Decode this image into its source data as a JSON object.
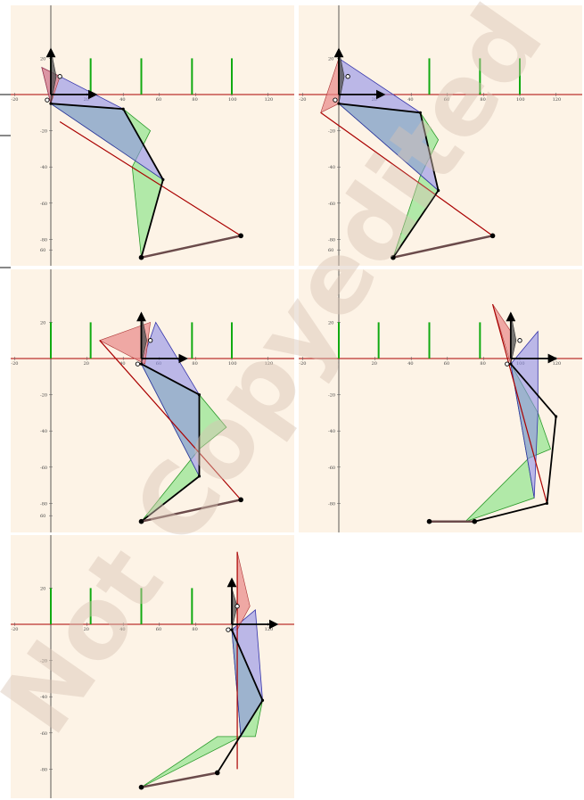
{
  "figure": {
    "panel_count": 5,
    "background_color": "#fdf3e6",
    "x_ticks": [
      -20,
      20,
      40,
      60,
      80,
      100,
      120
    ],
    "y_ticks": [
      60,
      20,
      -20,
      -40,
      -60,
      -80
    ],
    "x_tick_labels": [
      "-20",
      "20",
      "40",
      "60",
      "80",
      "100",
      "120"
    ],
    "y_tick_labels": [
      "60",
      "20",
      "-20",
      "-40",
      "-60",
      "-80"
    ],
    "colors": {
      "red_triangle": "#e88888",
      "blue_quad": "#8f8fe8",
      "green_triangle": "#7fe27f",
      "gray_triangle": "#555555",
      "dark_red_line": "#aa0000",
      "ground_line": "#6b4b4b",
      "green_bar": "#11aa11",
      "axis_red": "#aa0000"
    }
  },
  "panels": [
    {
      "id": 1,
      "green_bars_x": [
        0,
        22,
        50,
        78,
        100
      ],
      "bar_top_y": 20,
      "arrow_origin": [
        0,
        0
      ],
      "red_tri": [
        [
          -5,
          15
        ],
        [
          5,
          10
        ],
        [
          0,
          -5
        ]
      ],
      "gray_tri": [
        [
          0,
          25
        ],
        [
          3,
          10
        ],
        [
          0,
          -5
        ]
      ],
      "blue_poly": [
        [
          -5,
          15
        ],
        [
          5,
          10
        ],
        [
          40,
          -8
        ],
        [
          62,
          -47
        ],
        [
          0,
          -5
        ]
      ],
      "green_poly": [
        [
          0,
          -5
        ],
        [
          40,
          -8
        ],
        [
          55,
          -20
        ],
        [
          45,
          -40
        ],
        [
          50,
          -90
        ],
        [
          62,
          -47
        ]
      ],
      "leg_chain": [
        [
          0,
          -5
        ],
        [
          40,
          -8
        ],
        [
          62,
          -47
        ],
        [
          50,
          -90
        ],
        [
          105,
          -78
        ]
      ],
      "red_line": [
        [
          5,
          -15
        ],
        [
          105,
          -78
        ]
      ],
      "circles": [
        [
          -2,
          -3
        ],
        [
          5,
          10
        ]
      ]
    },
    {
      "id": 2,
      "green_bars_x": [
        0,
        50,
        78,
        100
      ],
      "bar_top_y": 20,
      "arrow_origin": [
        0,
        0
      ],
      "red_tri": [
        [
          -10,
          -10
        ],
        [
          0,
          20
        ],
        [
          0,
          -5
        ]
      ],
      "gray_tri": [
        [
          0,
          25
        ],
        [
          3,
          10
        ],
        [
          0,
          -5
        ]
      ],
      "blue_poly": [
        [
          0,
          20
        ],
        [
          45,
          -10
        ],
        [
          55,
          -53
        ],
        [
          0,
          -5
        ]
      ],
      "green_poly": [
        [
          0,
          -5
        ],
        [
          45,
          -10
        ],
        [
          55,
          -25
        ],
        [
          45,
          -45
        ],
        [
          30,
          -90
        ],
        [
          55,
          -53
        ]
      ],
      "leg_chain": [
        [
          0,
          -5
        ],
        [
          45,
          -10
        ],
        [
          55,
          -53
        ],
        [
          30,
          -90
        ],
        [
          85,
          -78
        ]
      ],
      "red_line": [
        [
          -10,
          -10
        ],
        [
          85,
          -78
        ]
      ],
      "circles": [
        [
          -2,
          -3
        ],
        [
          5,
          10
        ]
      ]
    },
    {
      "id": 3,
      "green_bars_x": [
        0,
        22,
        50,
        78,
        100
      ],
      "bar_top_y": 20,
      "arrow_origin": [
        50,
        0
      ],
      "red_tri": [
        [
          27,
          10
        ],
        [
          55,
          20
        ],
        [
          52,
          -3
        ]
      ],
      "gray_tri": [
        [
          50,
          25
        ],
        [
          53,
          10
        ],
        [
          50,
          -3
        ]
      ],
      "blue_poly": [
        [
          58,
          20
        ],
        [
          82,
          -20
        ],
        [
          82,
          -65
        ],
        [
          50,
          -3
        ]
      ],
      "green_poly": [
        [
          50,
          -3
        ],
        [
          82,
          -20
        ],
        [
          97,
          -38
        ],
        [
          82,
          -50
        ],
        [
          50,
          -90
        ],
        [
          82,
          -65
        ]
      ],
      "leg_chain": [
        [
          50,
          -3
        ],
        [
          82,
          -20
        ],
        [
          82,
          -65
        ],
        [
          50,
          -90
        ],
        [
          105,
          -78
        ]
      ],
      "red_line": [
        [
          27,
          10
        ],
        [
          105,
          -78
        ]
      ],
      "circles": [
        [
          48,
          -3
        ],
        [
          55,
          10
        ]
      ]
    },
    {
      "id": 4,
      "green_bars_x": [
        0,
        22,
        50,
        78
      ],
      "bar_top_y": 20,
      "arrow_origin": [
        95,
        0
      ],
      "red_tri": [
        [
          85,
          30
        ],
        [
          95,
          15
        ],
        [
          95,
          -3
        ]
      ],
      "gray_tri": [
        [
          95,
          25
        ],
        [
          98,
          10
        ],
        [
          95,
          -3
        ]
      ],
      "blue_poly": [
        [
          110,
          15
        ],
        [
          110,
          -30
        ],
        [
          108,
          -77
        ],
        [
          95,
          -3
        ]
      ],
      "green_poly": [
        [
          95,
          -3
        ],
        [
          110,
          -30
        ],
        [
          117,
          -50
        ],
        [
          105,
          -55
        ],
        [
          70,
          -90
        ],
        [
          108,
          -77
        ]
      ],
      "leg_chain": [
        [
          95,
          -3
        ],
        [
          120,
          -32
        ],
        [
          115,
          -80
        ],
        [
          75,
          -90
        ],
        [
          50,
          -90
        ]
      ],
      "red_line": [
        [
          85,
          30
        ],
        [
          115,
          -80
        ]
      ],
      "circles": [
        [
          93,
          -3
        ],
        [
          100,
          10
        ]
      ]
    },
    {
      "id": 5,
      "green_bars_x": [
        0,
        22,
        50,
        78
      ],
      "bar_top_y": 20,
      "arrow_origin": [
        100,
        0
      ],
      "red_tri": [
        [
          103,
          40
        ],
        [
          110,
          10
        ],
        [
          103,
          -3
        ]
      ],
      "gray_tri": [
        [
          100,
          20
        ],
        [
          103,
          10
        ],
        [
          100,
          -3
        ]
      ],
      "blue_poly": [
        [
          113,
          8
        ],
        [
          117,
          -42
        ],
        [
          105,
          -62
        ],
        [
          100,
          -3
        ]
      ],
      "green_poly": [
        [
          100,
          -3
        ],
        [
          117,
          -42
        ],
        [
          113,
          -62
        ],
        [
          92,
          -62
        ],
        [
          50,
          -90
        ],
        [
          105,
          -62
        ]
      ],
      "leg_chain": [
        [
          100,
          -3
        ],
        [
          117,
          -42
        ],
        [
          92,
          -82
        ],
        [
          50,
          -90
        ]
      ],
      "red_line": [
        [
          103,
          40
        ],
        [
          103,
          -80
        ]
      ],
      "circles": [
        [
          98,
          -3
        ],
        [
          103,
          10
        ]
      ]
    }
  ],
  "watermark": {
    "text": "Not Copyedited",
    "color": "#d8c4b4"
  }
}
